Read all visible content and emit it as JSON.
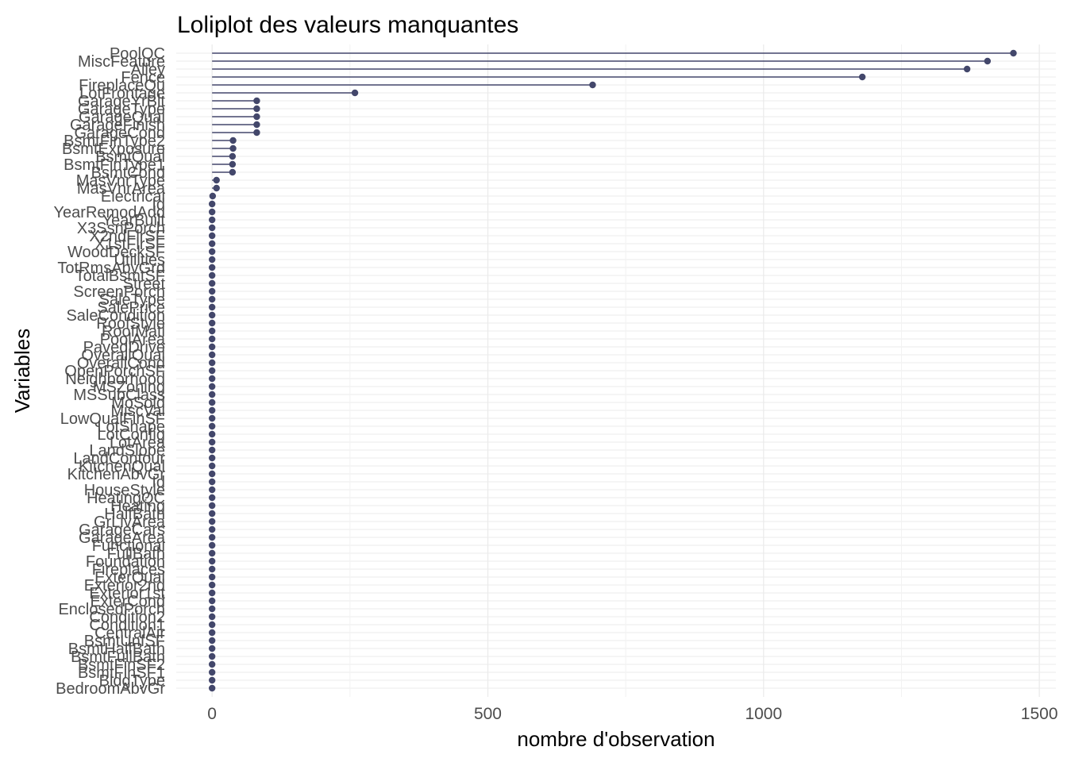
{
  "chart_data": {
    "type": "lollipop",
    "title": "Loliplot des valeurs manquantes",
    "xlabel": "nombre d'observation",
    "ylabel": "Variables",
    "xlim": [
      -65,
      1530
    ],
    "x_ticks": [
      0,
      500,
      1000,
      1500
    ],
    "grid": true,
    "legend": "none",
    "color": "#43476b",
    "categories": [
      "PoolQC",
      "MiscFeature",
      "Alley",
      "Fence",
      "FireplaceQu",
      "LotFrontage",
      "GarageYrBlt",
      "GarageType",
      "GarageQual",
      "GarageFinish",
      "GarageCond",
      "BsmtFinType2",
      "BsmtExposure",
      "BsmtQual",
      "BsmtFinType1",
      "BsmtCond",
      "MasVnrType",
      "MasVnrArea",
      "Electrical",
      "Id",
      "YearRemodAdd",
      "YearBuilt",
      "X3SsnPorch",
      "X2ndFlrSF",
      "X1stFlrSF",
      "WoodDeckSF",
      "Utilities",
      "TotRmsAbvGrd",
      "TotalBsmtSF",
      "Street",
      "ScreenPorch",
      "SaleType",
      "SalePrice",
      "SaleCondition",
      "RoofStyle",
      "RoofMatl",
      "PoolArea",
      "PavedDrive",
      "OverallQual",
      "OverallCond",
      "OpenPorchSF",
      "Neighborhood",
      "MSZoning",
      "MSSubClass",
      "MoSold",
      "MiscVal",
      "LowQualFinSF",
      "LotShape",
      "LotConfig",
      "LotArea",
      "LandSlope",
      "LandContour",
      "KitchenQual",
      "KitchenAbvGr",
      "Id",
      "HouseStyle",
      "HeatingQC",
      "Heating",
      "HalfBath",
      "GrLivArea",
      "GarageCars",
      "GarageArea",
      "Functional",
      "FullBath",
      "Foundation",
      "Fireplaces",
      "ExterQual",
      "Exterior2nd",
      "Exterior1st",
      "ExterCond",
      "EnclosedPorch",
      "Condition2",
      "Condition1",
      "CentralAir",
      "BsmtUnfSF",
      "BsmtHalfBath",
      "BsmtFullBath",
      "BsmtFinSF2",
      "BsmtFinSF1",
      "BldgType",
      "BedroomAbvGr"
    ],
    "values": [
      1453,
      1406,
      1369,
      1179,
      690,
      259,
      81,
      81,
      81,
      81,
      81,
      38,
      38,
      37,
      37,
      37,
      8,
      8,
      1,
      0,
      0,
      0,
      0,
      0,
      0,
      0,
      0,
      0,
      0,
      0,
      0,
      0,
      0,
      0,
      0,
      0,
      0,
      0,
      0,
      0,
      0,
      0,
      0,
      0,
      0,
      0,
      0,
      0,
      0,
      0,
      0,
      0,
      0,
      0,
      0,
      0,
      0,
      0,
      0,
      0,
      0,
      0,
      0,
      0,
      0,
      0,
      0,
      0,
      0,
      0,
      0,
      0,
      0,
      0,
      0,
      0,
      0,
      0,
      0,
      0,
      0
    ]
  }
}
